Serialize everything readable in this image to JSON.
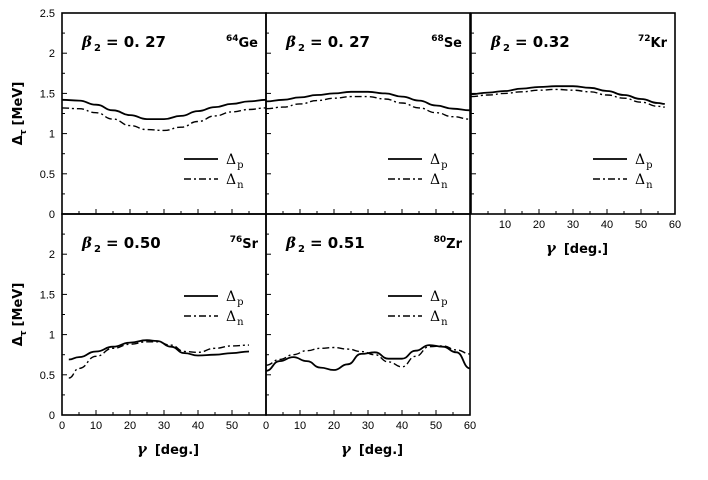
{
  "chart_data": {
    "type": "line",
    "ylabel": "Δ",
    "ylabel_sub": "τ",
    "ylabel_unit": "[MeV]",
    "xlabel": "γ",
    "xlabel_unit": "[deg.]",
    "xlim": [
      0,
      60
    ],
    "ylim": [
      0,
      2.5
    ],
    "yticks": [
      "0",
      "0.5",
      "1",
      "1.5",
      "2",
      "2.5"
    ],
    "xticks": [
      "10",
      "20",
      "30",
      "40",
      "50",
      "60"
    ],
    "xticks_with_zero": [
      "0",
      "10",
      "20",
      "30",
      "40",
      "50",
      "60"
    ],
    "grid": false,
    "legend_labels": [
      "Δ",
      "Δ"
    ],
    "legend_subs": [
      "p",
      "n"
    ],
    "panels": [
      {
        "beta_label": "β",
        "beta_sub": "2",
        "beta_value": "= 0. 27",
        "mass": "64",
        "element": "Ge",
        "series": [
          {
            "name": "Δp",
            "style": "solid",
            "x": [
              0,
              5,
              10,
              15,
              20,
              25,
              30,
              35,
              40,
              45,
              50,
              55,
              60
            ],
            "y": [
              1.42,
              1.41,
              1.36,
              1.29,
              1.23,
              1.18,
              1.18,
              1.22,
              1.28,
              1.33,
              1.37,
              1.4,
              1.42
            ]
          },
          {
            "name": "Δn",
            "style": "dash-dot",
            "x": [
              0,
              5,
              10,
              15,
              20,
              25,
              30,
              35,
              40,
              45,
              50,
              55,
              60
            ],
            "y": [
              1.32,
              1.31,
              1.26,
              1.18,
              1.1,
              1.05,
              1.04,
              1.08,
              1.15,
              1.22,
              1.27,
              1.3,
              1.32
            ]
          }
        ]
      },
      {
        "beta_label": "β",
        "beta_sub": "2",
        "beta_value": "= 0. 27",
        "mass": "68",
        "element": "Se",
        "series": [
          {
            "name": "Δp",
            "style": "solid",
            "x": [
              0,
              5,
              10,
              15,
              20,
              25,
              30,
              35,
              40,
              45,
              50,
              55,
              60
            ],
            "y": [
              1.4,
              1.42,
              1.45,
              1.48,
              1.5,
              1.52,
              1.52,
              1.5,
              1.46,
              1.41,
              1.35,
              1.31,
              1.29
            ]
          },
          {
            "name": "Δn",
            "style": "dash-dot",
            "x": [
              0,
              5,
              10,
              15,
              20,
              25,
              30,
              35,
              40,
              45,
              50,
              55,
              60
            ],
            "y": [
              1.31,
              1.33,
              1.37,
              1.41,
              1.44,
              1.46,
              1.46,
              1.43,
              1.38,
              1.32,
              1.26,
              1.21,
              1.18
            ]
          }
        ]
      },
      {
        "beta_label": "β",
        "beta_sub": "2",
        "beta_value": "= 0.32",
        "mass": "72",
        "element": "Kr",
        "series": [
          {
            "name": "Δp",
            "style": "solid",
            "x": [
              0,
              5,
              10,
              15,
              20,
              25,
              30,
              35,
              40,
              45,
              50,
              55,
              57
            ],
            "y": [
              1.49,
              1.51,
              1.53,
              1.56,
              1.58,
              1.59,
              1.59,
              1.57,
              1.53,
              1.48,
              1.43,
              1.38,
              1.37
            ]
          },
          {
            "name": "Δn",
            "style": "dash-dot",
            "x": [
              0,
              5,
              10,
              15,
              20,
              25,
              30,
              35,
              40,
              45,
              50,
              55,
              57
            ],
            "y": [
              1.46,
              1.48,
              1.5,
              1.52,
              1.54,
              1.55,
              1.54,
              1.52,
              1.48,
              1.44,
              1.39,
              1.34,
              1.33
            ]
          }
        ]
      },
      {
        "beta_label": "β",
        "beta_sub": "2",
        "beta_value": "= 0.50",
        "mass": "76",
        "element": "Sr",
        "series": [
          {
            "name": "Δp",
            "style": "solid",
            "x": [
              2,
              5,
              10,
              15,
              20,
              25,
              28,
              32,
              36,
              40,
              45,
              50,
              55
            ],
            "y": [
              0.69,
              0.72,
              0.79,
              0.85,
              0.9,
              0.93,
              0.92,
              0.85,
              0.77,
              0.74,
              0.75,
              0.77,
              0.79
            ]
          },
          {
            "name": "Δn",
            "style": "dash-dot",
            "x": [
              2,
              5,
              10,
              15,
              20,
              25,
              28,
              32,
              36,
              40,
              45,
              50,
              55
            ],
            "y": [
              0.46,
              0.58,
              0.73,
              0.83,
              0.88,
              0.91,
              0.91,
              0.87,
              0.79,
              0.78,
              0.83,
              0.86,
              0.87
            ]
          }
        ]
      },
      {
        "beta_label": "β",
        "beta_sub": "2",
        "beta_value": "= 0.51",
        "mass": "80",
        "element": "Zr",
        "series": [
          {
            "name": "Δp",
            "style": "solid",
            "x": [
              0,
              4,
              8,
              12,
              16,
              20,
              24,
              28,
              32,
              36,
              40,
              44,
              48,
              52,
              56,
              60
            ],
            "y": [
              0.55,
              0.67,
              0.72,
              0.67,
              0.59,
              0.56,
              0.63,
              0.76,
              0.78,
              0.7,
              0.7,
              0.8,
              0.87,
              0.85,
              0.78,
              0.58
            ]
          },
          {
            "name": "Δn",
            "style": "dash-dot",
            "x": [
              0,
              4,
              8,
              12,
              16,
              20,
              24,
              28,
              32,
              36,
              40,
              44,
              48,
              52,
              56,
              60
            ],
            "y": [
              0.62,
              0.69,
              0.75,
              0.8,
              0.83,
              0.84,
              0.82,
              0.79,
              0.75,
              0.66,
              0.6,
              0.73,
              0.85,
              0.86,
              0.81,
              0.76
            ]
          }
        ]
      }
    ]
  }
}
